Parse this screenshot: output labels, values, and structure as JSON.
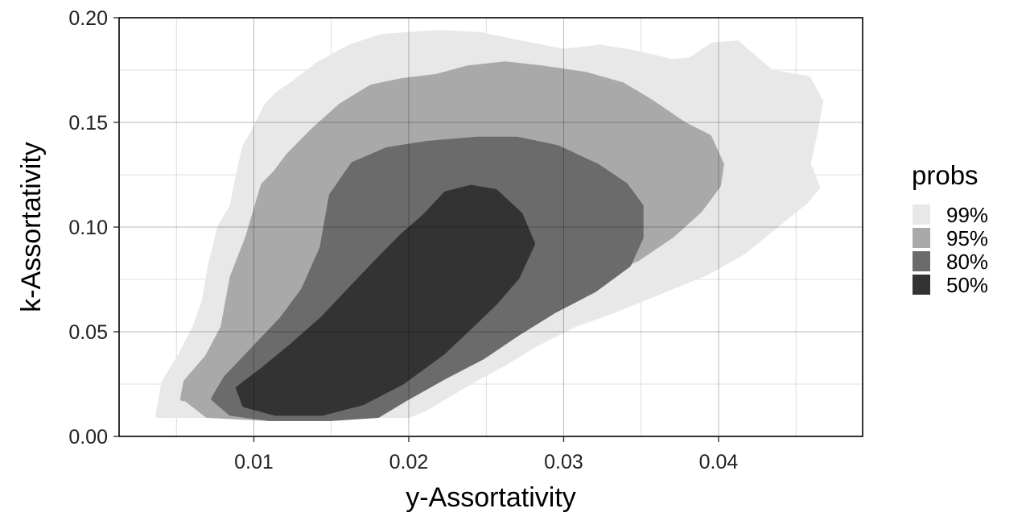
{
  "chart_data": {
    "type": "area",
    "subtype": "2d-density-contour",
    "title": "",
    "xlabel": "y-Assortativity",
    "ylabel": "k-Assortativity",
    "xlim": [
      0.0013,
      0.0493
    ],
    "ylim": [
      0.0,
      0.2
    ],
    "x_ticks": [
      0.01,
      0.02,
      0.03,
      0.04
    ],
    "x_tick_labels": [
      "0.01",
      "0.02",
      "0.03",
      "0.04"
    ],
    "y_ticks": [
      0.0,
      0.05,
      0.1,
      0.15,
      0.2
    ],
    "y_tick_labels": [
      "0.00",
      "0.05",
      "0.10",
      "0.15",
      "0.20"
    ],
    "grid": true,
    "legend": {
      "title": "probs",
      "position": "right",
      "items": [
        {
          "label": "99%",
          "color": "#e8e8e8"
        },
        {
          "label": "95%",
          "color": "#a9a9a9"
        },
        {
          "label": "80%",
          "color": "#6b6b6b"
        },
        {
          "label": "50%",
          "color": "#333333"
        }
      ]
    },
    "series": [
      {
        "name": "99%",
        "color": "#e8e8e8",
        "x": [
          0.0038,
          0.0042,
          0.0052,
          0.0062,
          0.0068,
          0.0072,
          0.0078,
          0.0086,
          0.009,
          0.0094,
          0.01,
          0.0108,
          0.0116,
          0.0126,
          0.0142,
          0.0162,
          0.0182,
          0.02,
          0.022,
          0.0246,
          0.0272,
          0.03,
          0.0324,
          0.0348,
          0.037,
          0.0382,
          0.0396,
          0.0412,
          0.0434,
          0.0458,
          0.0466,
          0.0462,
          0.0458,
          0.0464,
          0.0456,
          0.0436,
          0.0416,
          0.0392,
          0.0362,
          0.0332,
          0.0306,
          0.0282,
          0.0262,
          0.0242,
          0.0226,
          0.021,
          0.02,
          0.018,
          0.016,
          0.014,
          0.011,
          0.008,
          0.005,
          0.0038
        ],
        "y": [
          0.01,
          0.026,
          0.038,
          0.052,
          0.065,
          0.082,
          0.1,
          0.11,
          0.125,
          0.138,
          0.146,
          0.158,
          0.164,
          0.169,
          0.178,
          0.186,
          0.191,
          0.192,
          0.193,
          0.192,
          0.188,
          0.184,
          0.186,
          0.183,
          0.179,
          0.18,
          0.187,
          0.188,
          0.174,
          0.171,
          0.16,
          0.144,
          0.13,
          0.119,
          0.112,
          0.1,
          0.088,
          0.078,
          0.069,
          0.06,
          0.053,
          0.044,
          0.035,
          0.027,
          0.02,
          0.013,
          0.01,
          0.01,
          0.01,
          0.01,
          0.01,
          0.01,
          0.01,
          0.01
        ]
      },
      {
        "name": "95%",
        "color": "#a9a9a9",
        "x": [
          0.0054,
          0.0056,
          0.007,
          0.008,
          0.0086,
          0.0096,
          0.0106,
          0.0114,
          0.0122,
          0.0138,
          0.0156,
          0.0176,
          0.0196,
          0.0218,
          0.0238,
          0.0262,
          0.0286,
          0.0314,
          0.0338,
          0.0356,
          0.0378,
          0.0394,
          0.0402,
          0.04,
          0.0388,
          0.037,
          0.0348,
          0.0322,
          0.0296,
          0.027,
          0.0248,
          0.0228,
          0.021,
          0.019,
          0.015,
          0.011,
          0.007,
          0.0056
        ],
        "y": [
          0.018,
          0.026,
          0.038,
          0.052,
          0.076,
          0.095,
          0.12,
          0.126,
          0.134,
          0.146,
          0.158,
          0.167,
          0.17,
          0.172,
          0.176,
          0.178,
          0.176,
          0.173,
          0.168,
          0.16,
          0.149,
          0.143,
          0.13,
          0.12,
          0.108,
          0.096,
          0.085,
          0.076,
          0.065,
          0.052,
          0.042,
          0.032,
          0.024,
          0.015,
          0.0085,
          0.0085,
          0.01,
          0.018
        ]
      },
      {
        "name": "80%",
        "color": "#6b6b6b",
        "x": [
          0.0074,
          0.0082,
          0.01,
          0.0118,
          0.0132,
          0.0144,
          0.015,
          0.0164,
          0.0186,
          0.0212,
          0.0244,
          0.027,
          0.0296,
          0.0322,
          0.034,
          0.035,
          0.035,
          0.0342,
          0.032,
          0.0294,
          0.027,
          0.0248,
          0.0222,
          0.0198,
          0.018,
          0.015,
          0.011,
          0.0085,
          0.0074
        ],
        "y": [
          0.018,
          0.028,
          0.042,
          0.056,
          0.07,
          0.09,
          0.115,
          0.13,
          0.137,
          0.14,
          0.142,
          0.142,
          0.138,
          0.129,
          0.12,
          0.11,
          0.095,
          0.082,
          0.07,
          0.06,
          0.049,
          0.038,
          0.028,
          0.018,
          0.01,
          0.0085,
          0.0085,
          0.011,
          0.018
        ]
      },
      {
        "name": "50%",
        "color": "#333333",
        "x": [
          0.009,
          0.0106,
          0.0124,
          0.0144,
          0.0162,
          0.018,
          0.0196,
          0.021,
          0.0224,
          0.024,
          0.0256,
          0.0272,
          0.028,
          0.027,
          0.0256,
          0.0242,
          0.0222,
          0.0196,
          0.017,
          0.0144,
          0.0114,
          0.0094,
          0.009
        ],
        "y": [
          0.023,
          0.032,
          0.043,
          0.056,
          0.07,
          0.084,
          0.096,
          0.105,
          0.116,
          0.119,
          0.117,
          0.106,
          0.092,
          0.076,
          0.064,
          0.054,
          0.04,
          0.026,
          0.016,
          0.011,
          0.011,
          0.015,
          0.023
        ]
      }
    ]
  }
}
